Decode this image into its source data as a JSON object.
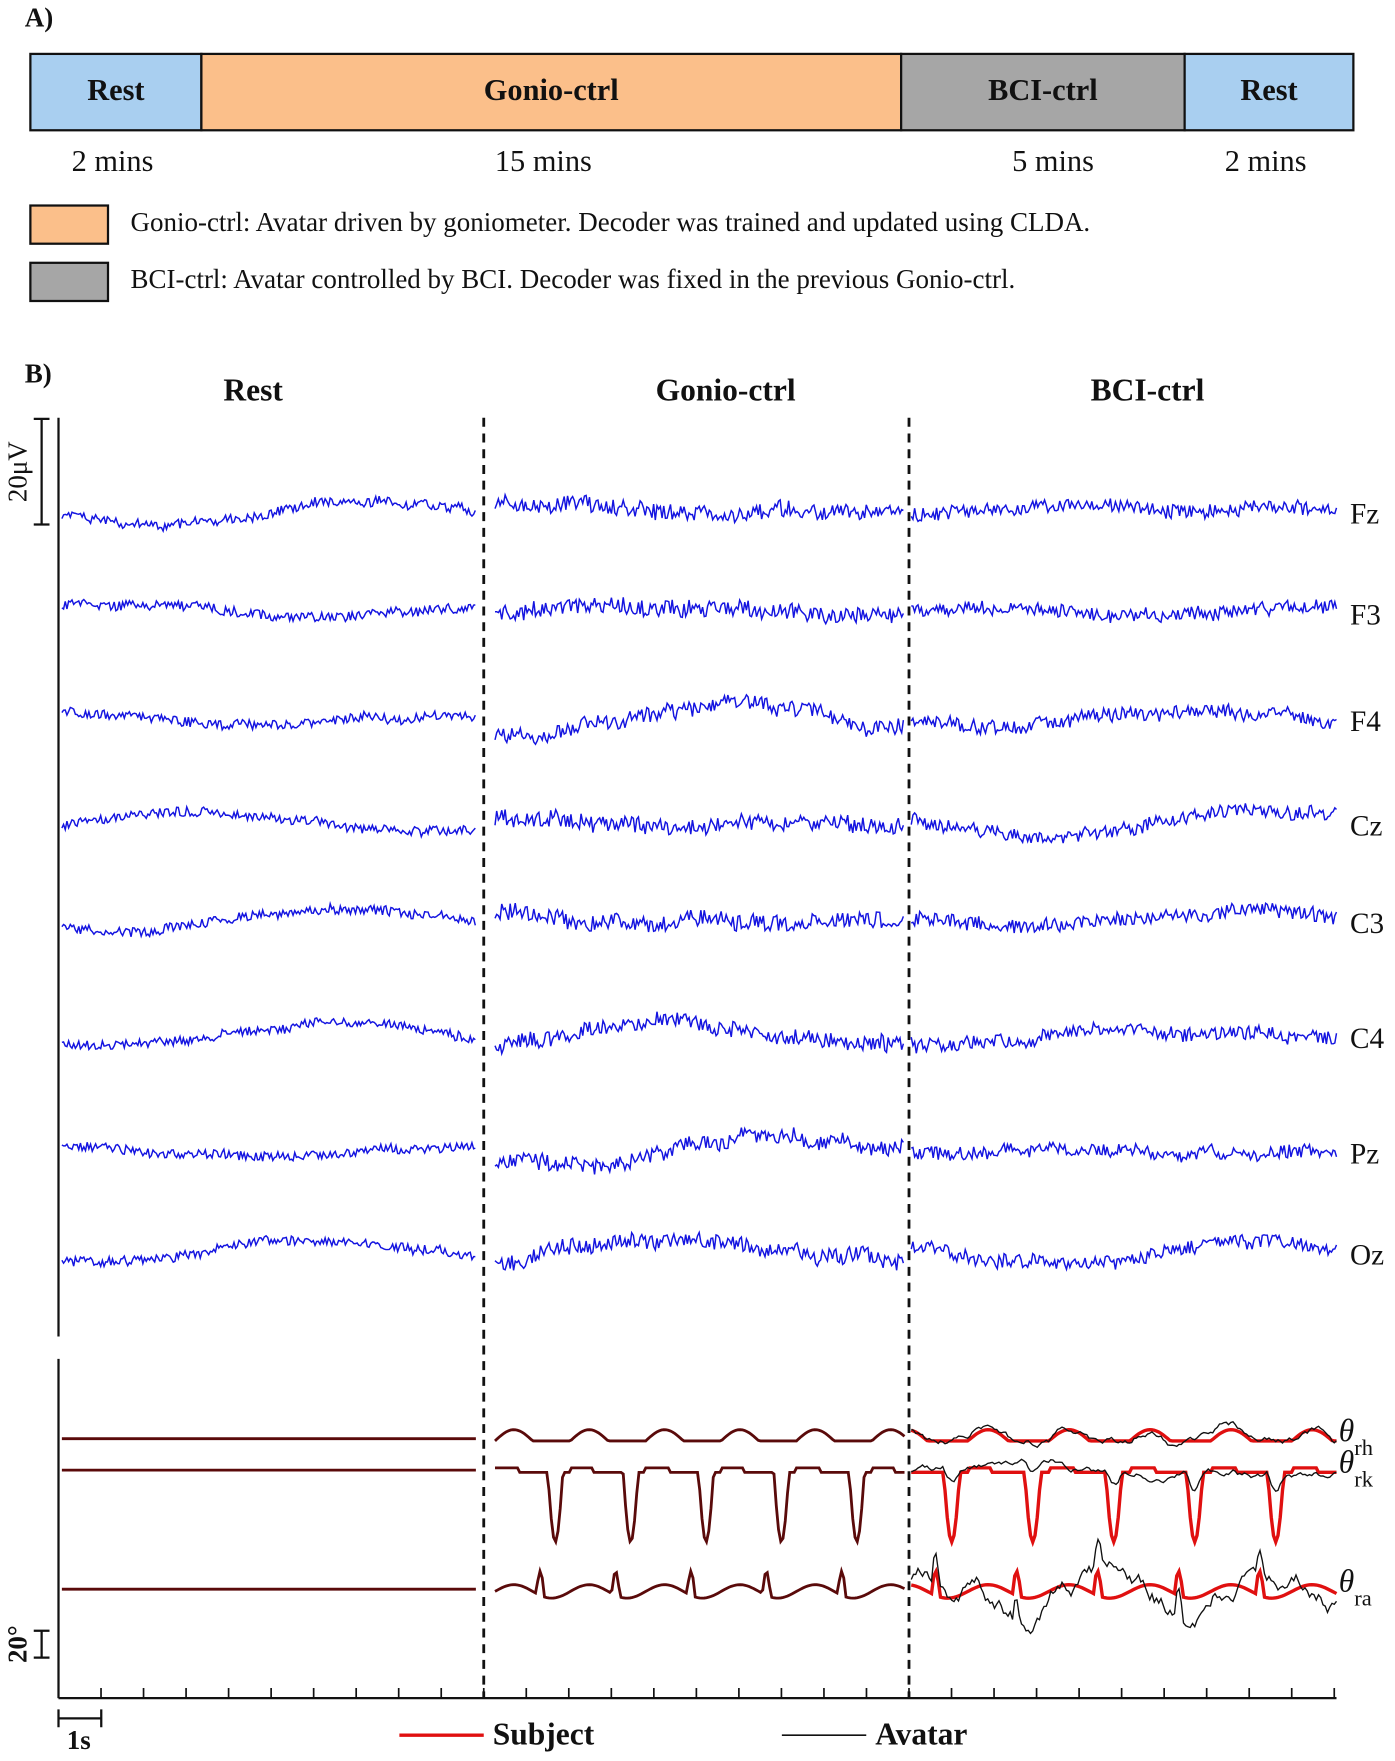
{
  "panel_a": {
    "label": "A)",
    "segments": [
      {
        "label": "Rest",
        "duration": "2 mins"
      },
      {
        "label": "Gonio-ctrl",
        "duration": "15 mins"
      },
      {
        "label": "BCI-ctrl",
        "duration": "5 mins"
      },
      {
        "label": "Rest",
        "duration": "2 mins"
      }
    ],
    "legend": [
      "Gonio-ctrl: Avatar driven by goniometer. Decoder was trained and updated using CLDA.",
      "BCI-ctrl: Avatar controlled by BCI. Decoder was fixed in the previous Gonio-ctrl."
    ]
  },
  "panel_b": {
    "label": "B)",
    "columns": [
      "Rest",
      "Gonio-ctrl",
      "BCI-ctrl"
    ],
    "channels": [
      "Fz",
      "F3",
      "F4",
      "Cz",
      "C3",
      "C4",
      "Pz",
      "Oz"
    ],
    "angles": [
      {
        "symbol": "θ",
        "subscript": "rh"
      },
      {
        "symbol": "θ",
        "subscript": "rk"
      },
      {
        "symbol": "θ",
        "subscript": "ra"
      }
    ],
    "eeg_scale": "20μV",
    "angle_scale": "20°",
    "time_scale": "1s",
    "legend": [
      "Subject",
      "Avatar"
    ]
  }
}
